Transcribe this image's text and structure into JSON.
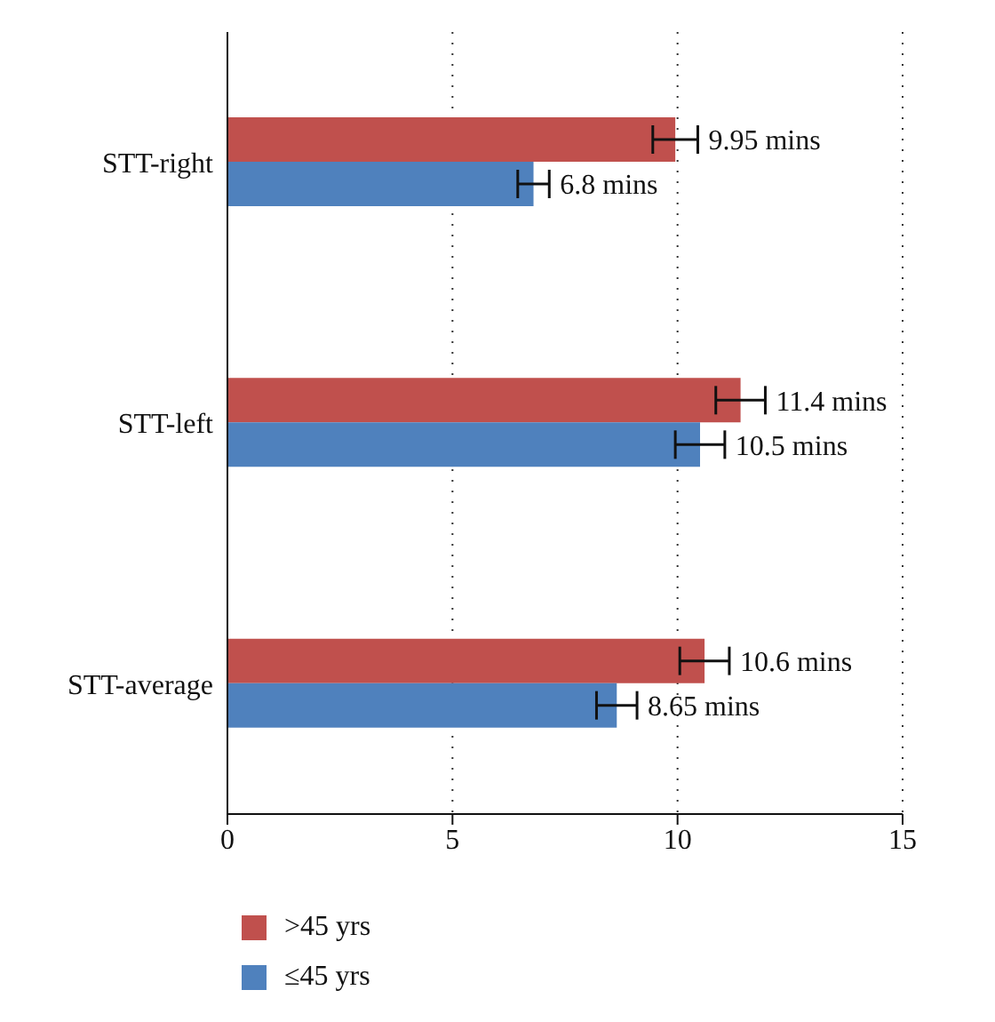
{
  "chart_data": {
    "type": "bar",
    "orientation": "horizontal",
    "categories": [
      "STT-right",
      "STT-left",
      "STT-average"
    ],
    "series": [
      {
        "name": ">45 yrs",
        "color": "#c0504d",
        "values": [
          9.95,
          11.4,
          10.6
        ],
        "errors": [
          0.5,
          0.55,
          0.55
        ],
        "value_labels": [
          "9.95 mins",
          "11.4 mins",
          "10.6 mins"
        ]
      },
      {
        "name": "≤45 yrs",
        "color": "#4f81bd",
        "values": [
          6.8,
          10.5,
          8.65
        ],
        "errors": [
          0.35,
          0.55,
          0.45
        ],
        "value_labels": [
          "6.8 mins",
          "10.5 mins",
          "8.65 mins"
        ]
      }
    ],
    "xlim": [
      0,
      15
    ],
    "xticks": [
      0,
      5,
      10,
      15
    ],
    "grid": "x",
    "legend": "bottom left"
  }
}
